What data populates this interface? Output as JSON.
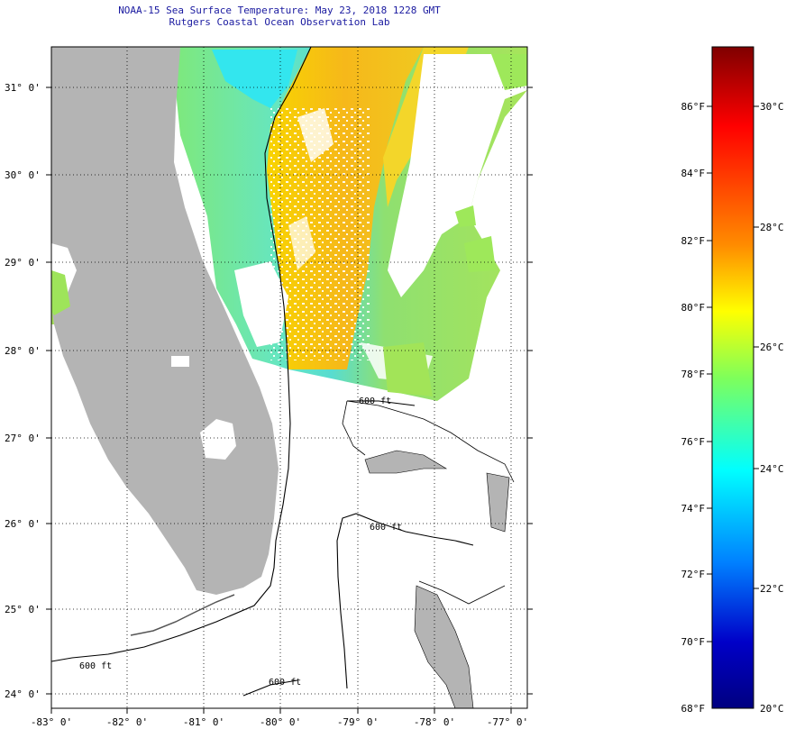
{
  "title": {
    "line1": "NOAA-15 Sea Surface Temperature:  May 23, 2018 1228 GMT",
    "line2": "Rutgers Coastal Ocean Observation Lab"
  },
  "map": {
    "lon_labels": [
      "-83° 0'",
      "-82° 0'",
      "-81° 0'",
      "-80° 0'",
      "-79° 0'",
      "-78° 0'",
      "-77° 0'"
    ],
    "lat_labels": [
      "31° 0'",
      "30° 0'",
      "29° 0'",
      "28° 0'",
      "27° 0'",
      "26° 0'",
      "25° 0'",
      "24° 0'"
    ],
    "contour_label": "600 ft",
    "land_color": "#b4b4b4",
    "grid": "dotted"
  },
  "colorbar": {
    "f_labels": [
      "86°F",
      "84°F",
      "82°F",
      "80°F",
      "78°F",
      "76°F",
      "74°F",
      "72°F",
      "70°F",
      "68°F"
    ],
    "c_labels": [
      "30°C",
      "28°C",
      "26°C",
      "24°C",
      "22°C",
      "20°C"
    ],
    "colors": [
      "#7f0000",
      "#ff0000",
      "#ff8c00",
      "#ffff00",
      "#7fff5a",
      "#00ffff",
      "#0080ff",
      "#0000c8",
      "#000080"
    ]
  }
}
